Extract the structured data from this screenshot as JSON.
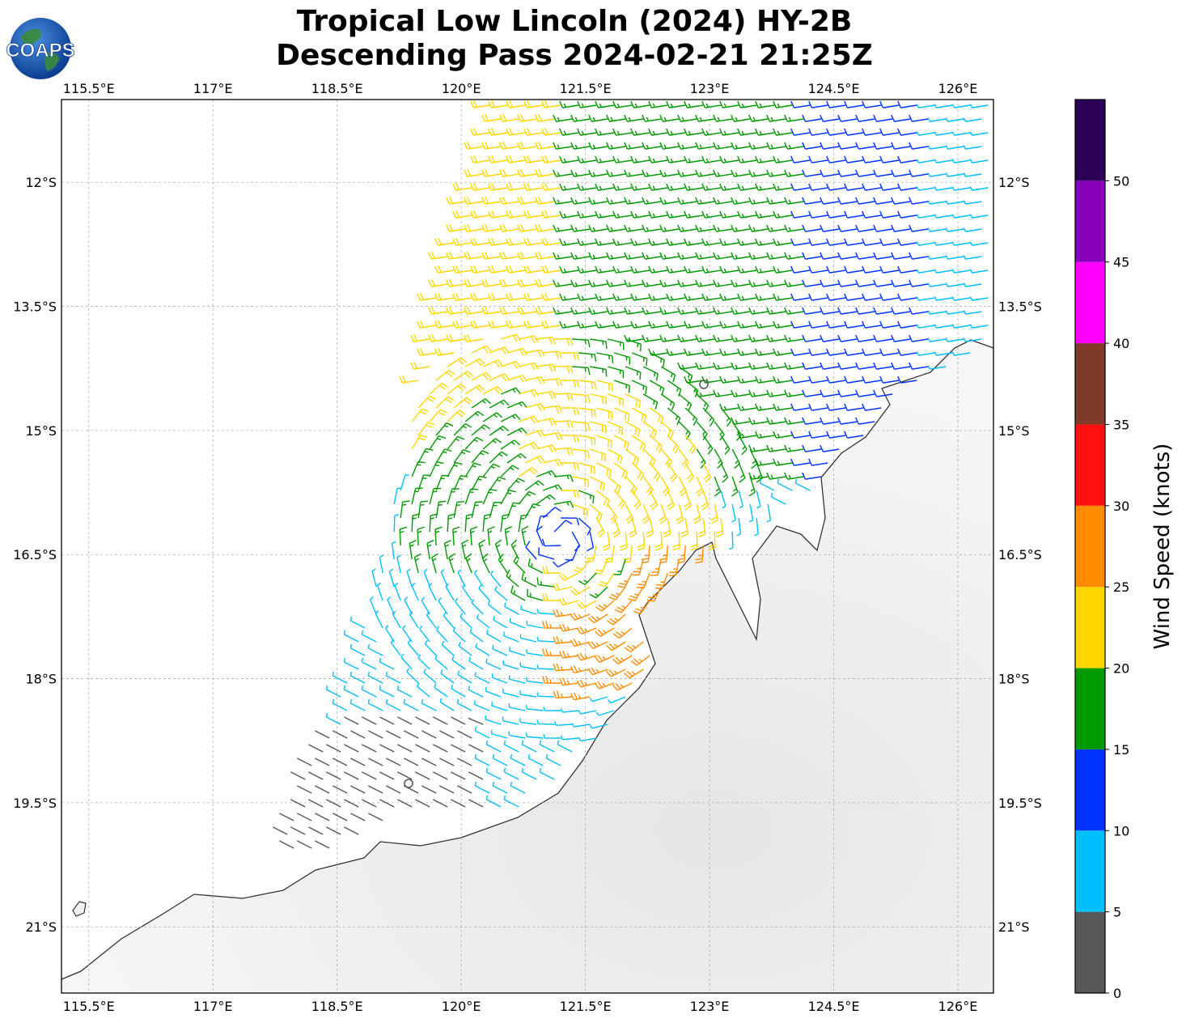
{
  "title": {
    "line1": "Tropical Low Lincoln (2024) HY-2B",
    "line2": "Descending Pass 2024-02-21 21:25Z"
  },
  "logo": {
    "text": "COAPS",
    "icon": "globe-icon"
  },
  "map": {
    "lon_ticks": [
      "115.5°E",
      "117°E",
      "118.5°E",
      "120°E",
      "121.5°E",
      "123°E",
      "124.5°E",
      "126°E"
    ],
    "lat_ticks": [
      "12°S",
      "13.5°S",
      "15°S",
      "16.5°S",
      "18°S",
      "19.5°S",
      "21°S"
    ],
    "lon_range": [
      115.17,
      126.43
    ],
    "lat_range": [
      11.0,
      21.8
    ],
    "land_color": "#f0f0f0",
    "coast_color": "#333333",
    "storm_center": {
      "lon": 121.2,
      "lat": 16.3
    }
  },
  "colorbar": {
    "label": "Wind Speed (knots)",
    "ticks": [
      "0",
      "5",
      "10",
      "15",
      "20",
      "25",
      "30",
      "35",
      "40",
      "45",
      "50"
    ],
    "bins": [
      {
        "min": 0,
        "max": 5,
        "color": "#575757"
      },
      {
        "min": 5,
        "max": 10,
        "color": "#00bfff"
      },
      {
        "min": 10,
        "max": 15,
        "color": "#0033ff"
      },
      {
        "min": 15,
        "max": 20,
        "color": "#009900"
      },
      {
        "min": 20,
        "max": 25,
        "color": "#ffd700"
      },
      {
        "min": 25,
        "max": 30,
        "color": "#ff8c00"
      },
      {
        "min": 30,
        "max": 35,
        "color": "#ff1010"
      },
      {
        "min": 35,
        "max": 40,
        "color": "#7f3a2a"
      },
      {
        "min": 40,
        "max": 45,
        "color": "#ff00ff"
      },
      {
        "min": 45,
        "max": 50,
        "color": "#8800bb"
      },
      {
        "min": 50,
        "max": 55,
        "color": "#2d0058"
      }
    ]
  }
}
